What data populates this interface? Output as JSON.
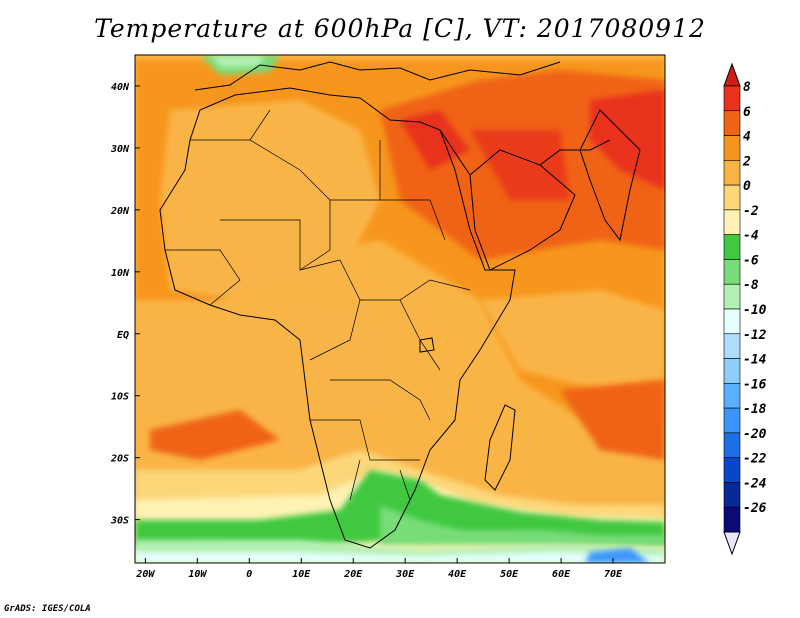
{
  "title": "Temperature at 600hPa [C], VT: 2017080912",
  "credit": "GrADS: IGES/COLA",
  "map": {
    "lon_range": [
      -22,
      80
    ],
    "lat_range": [
      -37,
      45
    ],
    "lon_ticks": [
      {
        "value": -20,
        "label": "20W"
      },
      {
        "value": -10,
        "label": "10W"
      },
      {
        "value": 0,
        "label": "0"
      },
      {
        "value": 10,
        "label": "10E"
      },
      {
        "value": 20,
        "label": "20E"
      },
      {
        "value": 30,
        "label": "30E"
      },
      {
        "value": 40,
        "label": "40E"
      },
      {
        "value": 50,
        "label": "50E"
      },
      {
        "value": 60,
        "label": "60E"
      },
      {
        "value": 70,
        "label": "70E"
      }
    ],
    "lat_ticks": [
      {
        "value": 40,
        "label": "40N"
      },
      {
        "value": 30,
        "label": "30N"
      },
      {
        "value": 20,
        "label": "20N"
      },
      {
        "value": 10,
        "label": "10N"
      },
      {
        "value": 0,
        "label": "EQ"
      },
      {
        "value": -10,
        "label": "10S"
      },
      {
        "value": -20,
        "label": "20S"
      },
      {
        "value": -30,
        "label": "30S"
      }
    ]
  },
  "colorbar": {
    "levels": [
      "8",
      "6",
      "4",
      "2",
      "0",
      "-2",
      "-4",
      "-6",
      "-8",
      "-10",
      "-12",
      "-14",
      "-16",
      "-18",
      "-20",
      "-22",
      "-24",
      "-26"
    ],
    "colors": [
      "#e8321e",
      "#f06418",
      "#f7961e",
      "#f9b446",
      "#fcd77a",
      "#fef2b4",
      "#41c841",
      "#78dc78",
      "#b4f0b4",
      "#e6ffff",
      "#afdcfa",
      "#8ccdfa",
      "#5aafff",
      "#3c96fa",
      "#1e6ee6",
      "#0a46c8",
      "#082896",
      "#0a0a78"
    ],
    "top_arrow_color": "#d01e14",
    "bottom_arrow_color": "#e6e6ff"
  }
}
